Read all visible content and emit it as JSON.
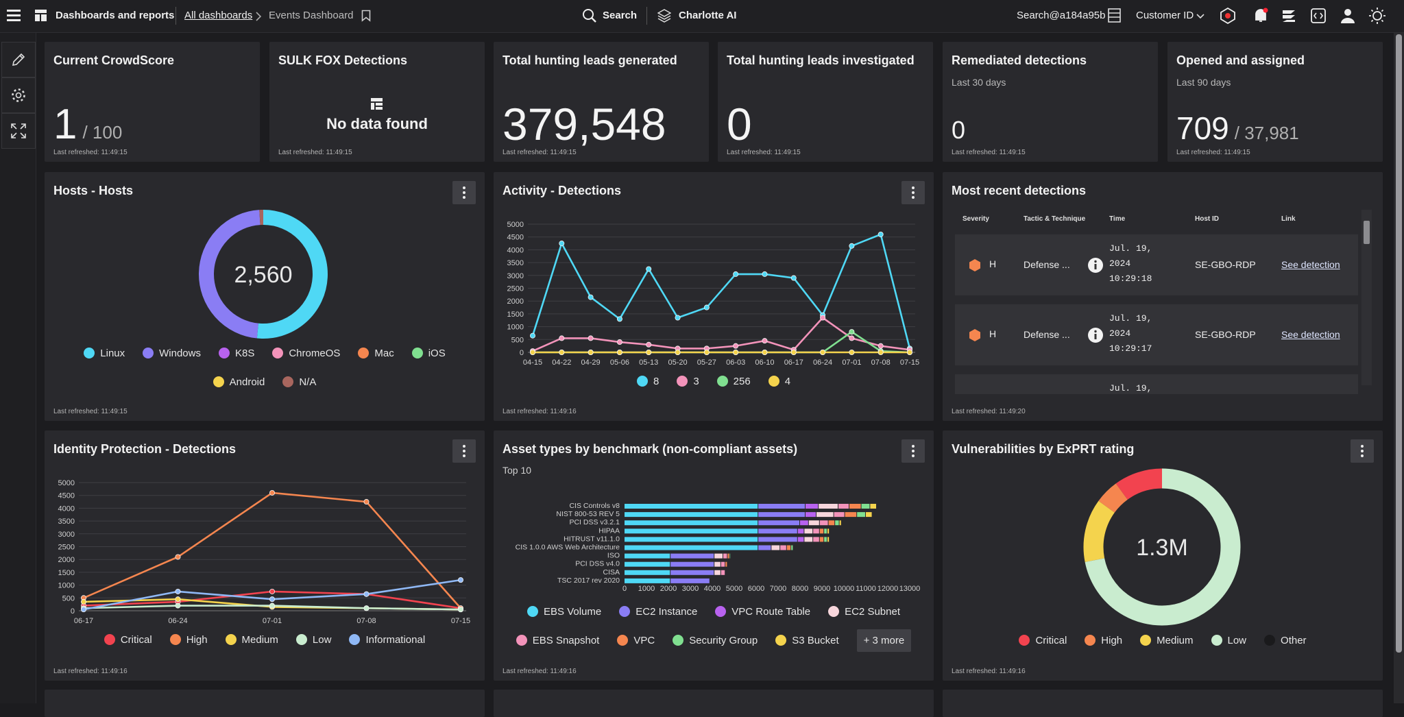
{
  "header": {
    "menu_title": "Dashboards and reports",
    "breadcrumb": [
      "All dashboards",
      "Events Dashboard"
    ],
    "search": "Search",
    "assistant": "Charlotte AI",
    "user": "Search@a184a95b",
    "customer": "Customer ID"
  },
  "tiles": [
    {
      "title": "Current CrowdScore",
      "value": "1",
      "suffix": "/ 100",
      "footnote": "Last refreshed: 11:49:15"
    },
    {
      "title": "SULK FOX Detections",
      "empty": "No data found",
      "footnote": "Last refreshed: 11:49:15"
    },
    {
      "title": "Total hunting leads generated",
      "value": "379,548",
      "footnote": "Last refreshed: 11:49:15"
    },
    {
      "title": "Total hunting leads investigated",
      "value": "0",
      "footnote": "Last refreshed: 11:49:15"
    },
    {
      "title": "Remediated detections",
      "subtitle": "Last 30 days",
      "value": "0",
      "footnote": "Last refreshed: 11:49:15"
    },
    {
      "title": "Opened and assigned",
      "subtitle": "Last 90 days",
      "value": "709",
      "suffix": "/ 37,981",
      "footnote": "Last refreshed: 11:49:15"
    }
  ],
  "chart_data": [
    {
      "type": "donut",
      "title": "Hosts - Hosts",
      "center_label": "2,560",
      "direction": "clockwise",
      "categories": [
        "Linux",
        "Windows",
        "K8S",
        "ChromeOS",
        "Mac",
        "iOS",
        "Android",
        "N/A"
      ],
      "values": [
        1320,
        1215,
        0,
        0,
        0,
        0,
        0,
        25
      ],
      "colors": [
        "#4fd8f5",
        "#8a7df4",
        "#b862ef",
        "#f393ba",
        "#f5864f",
        "#80df90",
        "#f4d34d",
        "#a8665e"
      ],
      "footnote": "Last refreshed: 11:49:15"
    },
    {
      "type": "line",
      "title": "Activity - Detections",
      "grid": true,
      "x": [
        "04-15",
        "04-22",
        "04-29",
        "05-06",
        "05-13",
        "05-20",
        "05-27",
        "06-03",
        "06-10",
        "06-17",
        "06-24",
        "07-01",
        "07-08",
        "07-15"
      ],
      "series": [
        {
          "name": "8",
          "color": "#4fd8f5",
          "values": [
            650,
            4250,
            2150,
            1300,
            3250,
            1350,
            1750,
            3050,
            3050,
            2900,
            1450,
            4150,
            4600,
            150
          ]
        },
        {
          "name": "3",
          "color": "#f393ba",
          "values": [
            50,
            550,
            550,
            400,
            300,
            150,
            150,
            250,
            450,
            100,
            1350,
            550,
            250,
            100
          ]
        },
        {
          "name": "256",
          "color": "#80df90",
          "values": [
            0,
            0,
            0,
            0,
            0,
            0,
            0,
            0,
            0,
            0,
            0,
            800,
            50,
            0
          ]
        },
        {
          "name": "4",
          "color": "#f4d34d",
          "values": [
            0,
            0,
            0,
            0,
            0,
            0,
            0,
            0,
            0,
            0,
            0,
            0,
            0,
            0
          ]
        }
      ],
      "ylim": [
        0,
        5000
      ],
      "yticks": [
        0,
        500,
        1000,
        1500,
        2000,
        2500,
        3000,
        3500,
        4000,
        4500,
        5000
      ],
      "footnote": "Last refreshed: 11:49:16"
    },
    {
      "type": "line",
      "title": "Identity Protection - Detections",
      "grid": true,
      "x": [
        "06-17",
        "06-24",
        "07-01",
        "07-08",
        "07-15"
      ],
      "series": [
        {
          "name": "Critical",
          "color": "#f2434f",
          "values": [
            200,
            350,
            750,
            650,
            100
          ]
        },
        {
          "name": "High",
          "color": "#f5864f",
          "values": [
            500,
            2100,
            4600,
            4250,
            100
          ]
        },
        {
          "name": "Medium",
          "color": "#f4d34d",
          "values": [
            350,
            450,
            150,
            100,
            50
          ]
        },
        {
          "name": "Low",
          "color": "#c9eccf",
          "values": [
            100,
            200,
            200,
            100,
            50
          ]
        },
        {
          "name": "Informational",
          "color": "#8fb8f5",
          "values": [
            50,
            750,
            450,
            650,
            1200
          ]
        }
      ],
      "ylim": [
        0,
        5000
      ],
      "yticks": [
        0,
        500,
        1000,
        1500,
        2000,
        2500,
        3000,
        3500,
        4000,
        4500,
        5000
      ],
      "footnote": "Last refreshed: 11:49:16"
    },
    {
      "type": "bar",
      "orientation": "horizontal",
      "stacked": true,
      "title": "Asset types by benchmark (non-compliant assets)",
      "subtitle": "Top 10",
      "categories": [
        "CIS Controls v8",
        "NIST 800-53 REV 5",
        "PCI DSS v3.2.1",
        "HIPAA",
        "HITRUST v11.1.0",
        "CIS 1.0.0 AWS Web Architecture",
        "ISO",
        "PCI DSS v4.0",
        "CISA",
        "TSC 2017 rev 2020"
      ],
      "series": [
        {
          "name": "EBS Volume",
          "color": "#4fd8f5",
          "values": [
            6100,
            6100,
            6100,
            6100,
            6100,
            6100,
            2100,
            2100,
            2100,
            2100
          ]
        },
        {
          "name": "EC2 Instance",
          "color": "#8a7df4",
          "values": [
            2150,
            2150,
            1900,
            1800,
            1800,
            600,
            2000,
            2000,
            2000,
            1800
          ]
        },
        {
          "name": "VPC Route Table",
          "color": "#b862ef",
          "values": [
            600,
            500,
            400,
            300,
            300,
            0,
            0,
            0,
            0,
            0
          ]
        },
        {
          "name": "EC2 Subnet",
          "color": "#f7d6dc",
          "values": [
            900,
            800,
            500,
            400,
            400,
            400,
            400,
            300,
            300,
            0
          ]
        },
        {
          "name": "EBS Snapshot",
          "color": "#f393ba",
          "values": [
            500,
            500,
            400,
            300,
            300,
            300,
            200,
            200,
            200,
            0
          ]
        },
        {
          "name": "VPC",
          "color": "#f5864f",
          "values": [
            550,
            550,
            300,
            200,
            200,
            200,
            100,
            100,
            0,
            0
          ]
        },
        {
          "name": "Security Group",
          "color": "#80df90",
          "values": [
            400,
            400,
            200,
            150,
            150,
            100,
            50,
            0,
            0,
            0
          ]
        },
        {
          "name": "S3 Bucket",
          "color": "#f4d34d",
          "values": [
            300,
            300,
            100,
            100,
            100,
            0,
            0,
            0,
            0,
            0
          ]
        }
      ],
      "more_label": "+ 3 more",
      "xlim": [
        0,
        13000
      ],
      "xticks": [
        0,
        1000,
        2000,
        3000,
        4000,
        5000,
        6000,
        7000,
        8000,
        9000,
        10000,
        11000,
        12000,
        13000
      ],
      "footnote": "Last refreshed: 11:49:16"
    },
    {
      "type": "donut",
      "title": "Vulnerabilities by ExPRT rating",
      "center_label": "1.3M",
      "direction": "counterclockwise",
      "categories": [
        "Critical",
        "High",
        "Medium",
        "Low",
        "Other"
      ],
      "values": [
        130000,
        65000,
        170000,
        935000,
        0
      ],
      "colors": [
        "#f2434f",
        "#f5864f",
        "#f4d34d",
        "#c9eccf",
        "#1a1a1c"
      ],
      "footnote": "Last refreshed: 11:49:16"
    }
  ],
  "recent": {
    "title": "Most recent detections",
    "columns": [
      "Severity",
      "Tactic & Technique",
      "Time",
      "Host ID",
      "Link"
    ],
    "rows": [
      {
        "severity": "H",
        "tactic": "Defense ...",
        "time": [
          "Jul. 19,",
          "2024",
          "10:29:18"
        ],
        "host": "SE-GBO-RDP",
        "link": "See detection"
      },
      {
        "severity": "H",
        "tactic": "Defense ...",
        "time": [
          "Jul. 19,",
          "2024",
          "10:29:17"
        ],
        "host": "SE-GBO-RDP",
        "link": "See detection"
      },
      {
        "time": [
          "Jul. 19,"
        ]
      }
    ],
    "footnote": "Last refreshed: 11:49:20"
  }
}
